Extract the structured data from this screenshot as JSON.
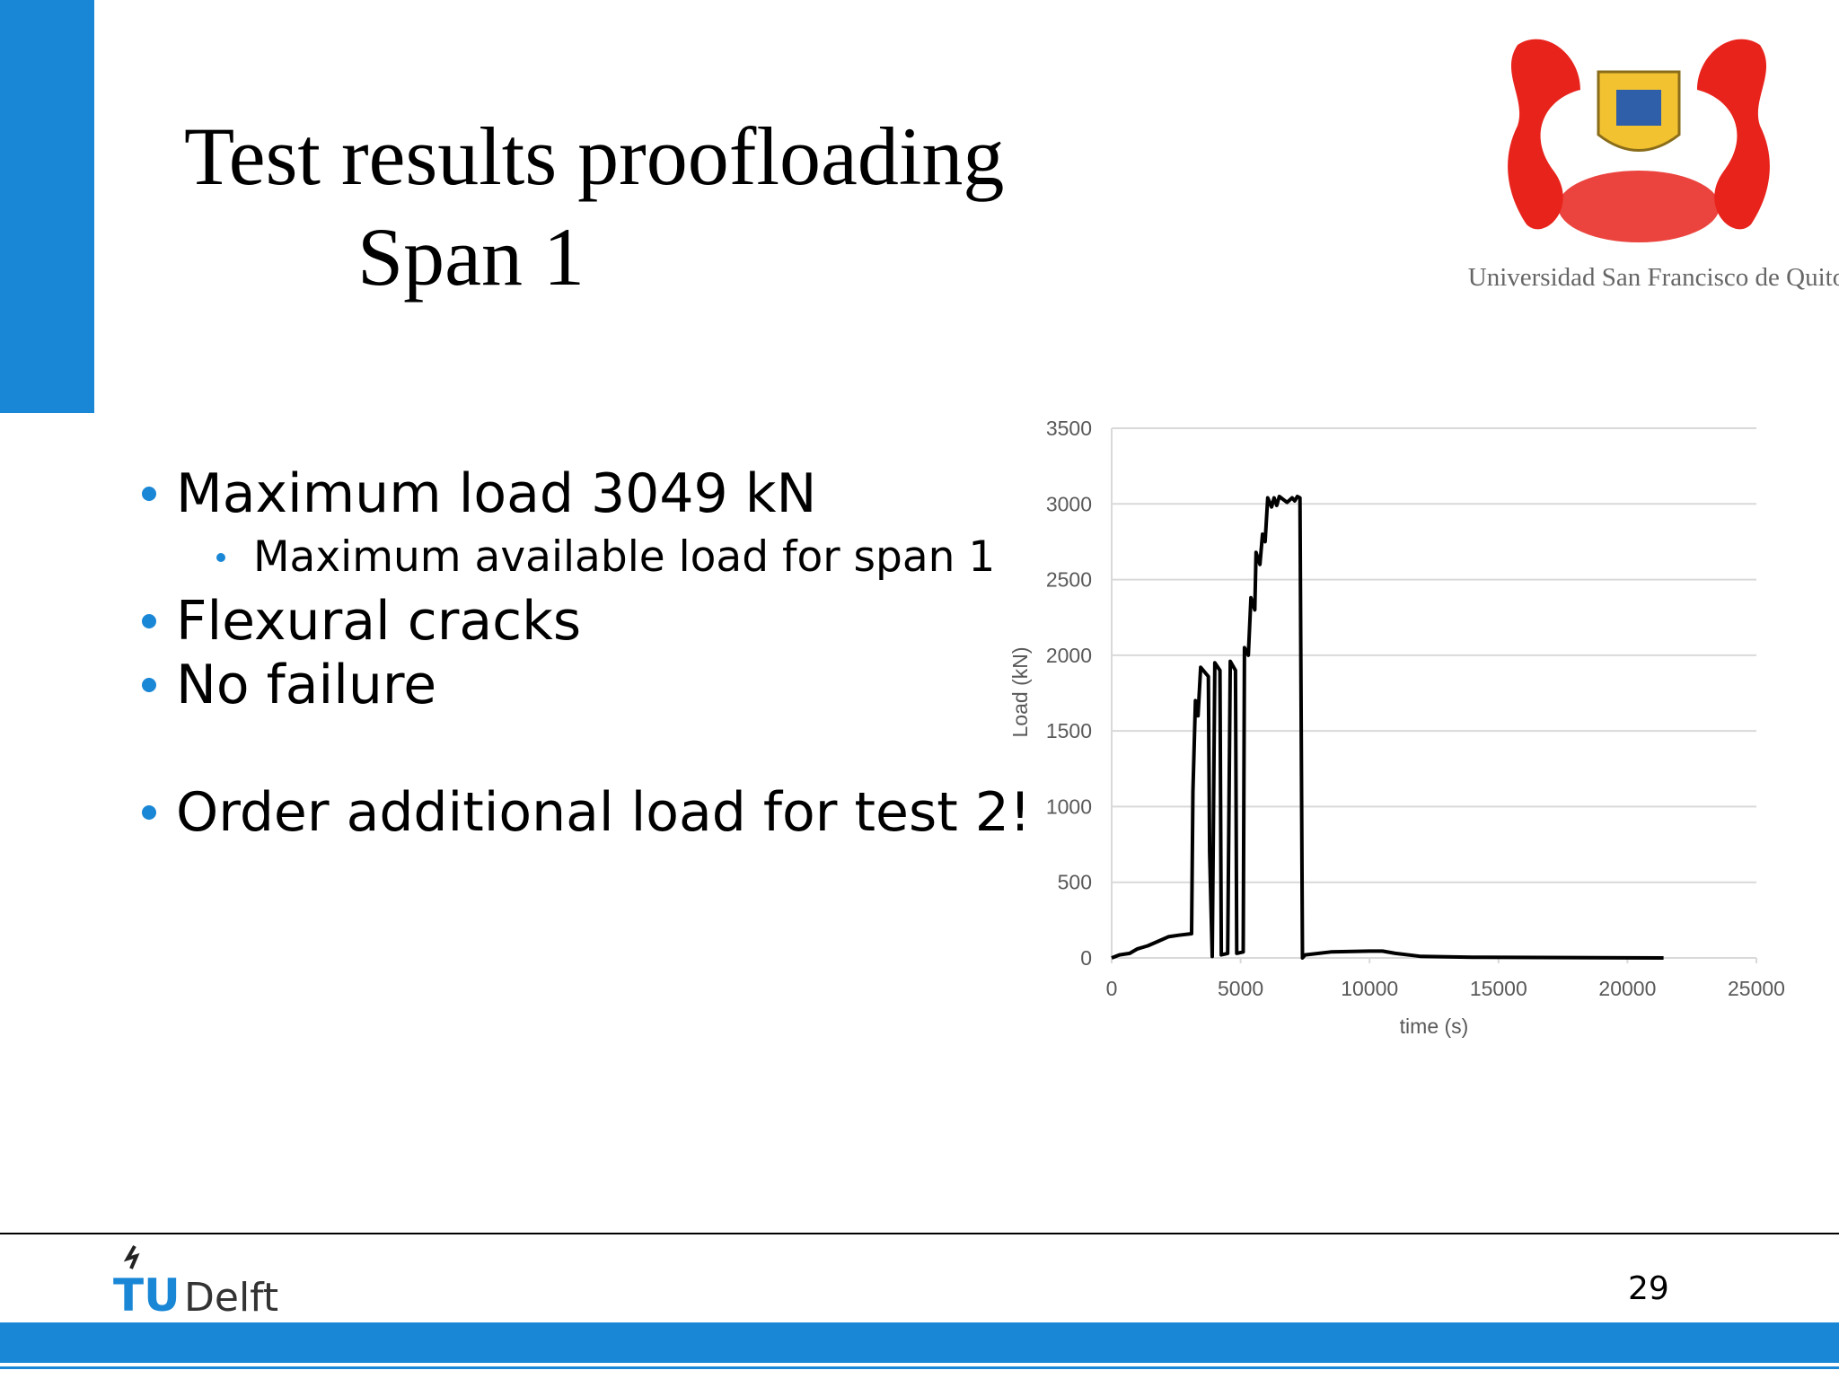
{
  "slide": {
    "title": [
      "Test results proofloading",
      "Span 1"
    ],
    "bullets": [
      {
        "text": "Maximum load 3049 kN",
        "sub": [
          "Maximum available load for span 1"
        ]
      },
      {
        "text": "Flexural cracks"
      },
      {
        "text": "No failure"
      },
      {
        "text": "Order additional load for test 2!"
      }
    ],
    "university": "Universidad San Francisco de Quito",
    "footer_logo": [
      "TU",
      "Delft"
    ],
    "page_number": "29"
  },
  "chart_data": {
    "type": "line",
    "x_label": "time (s)",
    "y_label": "Load (kN)",
    "x": [
      0,
      300,
      700,
      1000,
      1400,
      1800,
      2200,
      2600,
      3100,
      3150,
      3250,
      3350,
      3450,
      3750,
      3800,
      3900,
      4000,
      4200,
      4250,
      4500,
      4600,
      4800,
      4850,
      5100,
      5150,
      5300,
      5400,
      5550,
      5600,
      5750,
      5850,
      5950,
      6050,
      6200,
      6300,
      6400,
      6500,
      6800,
      7000,
      7100,
      7200,
      7300,
      7400,
      7500,
      8500,
      10000,
      10500,
      11000,
      12000,
      14000,
      21400
    ],
    "values": [
      0,
      20,
      30,
      60,
      80,
      110,
      140,
      150,
      160,
      1100,
      1700,
      1600,
      1920,
      1860,
      700,
      10,
      1950,
      1900,
      20,
      30,
      1960,
      1900,
      30,
      40,
      2050,
      2000,
      2380,
      2300,
      2680,
      2600,
      2800,
      2750,
      3040,
      2980,
      3040,
      2990,
      3049,
      3010,
      3040,
      3020,
      3049,
      3040,
      0,
      20,
      40,
      45,
      45,
      30,
      10,
      5,
      0
    ],
    "color": "#000000",
    "xlim": [
      0,
      25000
    ],
    "xticks": [
      0,
      5000,
      10000,
      15000,
      20000,
      25000
    ],
    "ylim": [
      0,
      3500
    ],
    "yticks": [
      0,
      500,
      1000,
      1500,
      2000,
      2500,
      3000,
      3500
    ],
    "grid": true
  }
}
